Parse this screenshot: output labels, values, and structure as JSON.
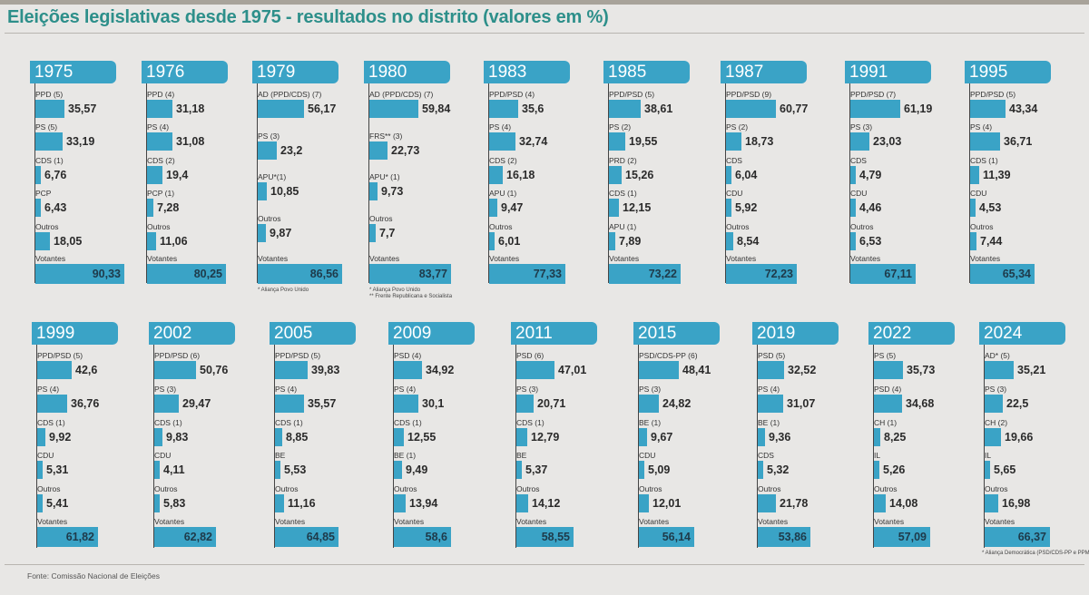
{
  "title": "Eleições legislativas desde 1975 - resultados no distrito (valores em %)",
  "source": "Fonte: Comissão Nacional de Eleições",
  "colors": {
    "bar": "#3aa3c6",
    "title": "#2d8f8a"
  },
  "chart_data": {
    "type": "bar",
    "unit": "%",
    "elections": [
      {
        "year": "1975",
        "parties": [
          {
            "label": "PPD (5)",
            "value": 35.57,
            "text": "35,57"
          },
          {
            "label": "PS (5)",
            "value": 33.19,
            "text": "33,19"
          },
          {
            "label": "CDS (1)",
            "value": 6.76,
            "text": "6,76"
          },
          {
            "label": "PCP",
            "value": 6.43,
            "text": "6,43"
          },
          {
            "label": "Outros",
            "value": 18.05,
            "text": "18,05"
          }
        ],
        "votantes": {
          "label": "Votantes",
          "value": 90.33,
          "text": "90,33"
        },
        "notes": []
      },
      {
        "year": "1976",
        "parties": [
          {
            "label": "PPD (4)",
            "value": 31.18,
            "text": "31,18"
          },
          {
            "label": "PS (4)",
            "value": 31.08,
            "text": "31,08"
          },
          {
            "label": "CDS (2)",
            "value": 19.4,
            "text": "19,4"
          },
          {
            "label": "PCP (1)",
            "value": 7.28,
            "text": "7,28"
          },
          {
            "label": "Outros",
            "value": 11.06,
            "text": "11,06"
          }
        ],
        "votantes": {
          "label": "Votantes",
          "value": 80.25,
          "text": "80,25"
        },
        "notes": []
      },
      {
        "year": "1979",
        "parties": [
          {
            "label": "AD (PPD/CDS) (7)",
            "value": 56.17,
            "text": "56,17"
          },
          {
            "label": "PS (3)",
            "value": 23.2,
            "text": "23,2"
          },
          {
            "label": "APU*(1)",
            "value": 10.85,
            "text": "10,85"
          },
          {
            "label": "Outros",
            "value": 9.87,
            "text": "9,87"
          }
        ],
        "votantes": {
          "label": "Votantes",
          "value": 86.56,
          "text": "86,56"
        },
        "notes": [
          "* Aliança Povo Unido"
        ]
      },
      {
        "year": "1980",
        "parties": [
          {
            "label": "AD (PPD/CDS) (7)",
            "value": 59.84,
            "text": "59,84"
          },
          {
            "label": "FRS** (3)",
            "value": 22.73,
            "text": "22,73"
          },
          {
            "label": "APU* (1)",
            "value": 9.73,
            "text": "9,73"
          },
          {
            "label": "Outros",
            "value": 7.7,
            "text": "7,7"
          }
        ],
        "votantes": {
          "label": "Votantes",
          "value": 83.77,
          "text": "83,77"
        },
        "notes": [
          "* Aliança Povo Unido",
          "** Frente Republicana e Socialista"
        ]
      },
      {
        "year": "1983",
        "parties": [
          {
            "label": "PPD/PSD (4)",
            "value": 35.6,
            "text": "35,6"
          },
          {
            "label": "PS (4)",
            "value": 32.74,
            "text": "32,74"
          },
          {
            "label": "CDS (2)",
            "value": 16.18,
            "text": "16,18"
          },
          {
            "label": "APU (1)",
            "value": 9.47,
            "text": "9,47"
          },
          {
            "label": "Outros",
            "value": 6.01,
            "text": "6,01"
          }
        ],
        "votantes": {
          "label": "Votantes",
          "value": 77.33,
          "text": "77,33"
        },
        "notes": []
      },
      {
        "year": "1985",
        "parties": [
          {
            "label": "PPD/PSD (5)",
            "value": 38.61,
            "text": "38,61"
          },
          {
            "label": "PS (2)",
            "value": 19.55,
            "text": "19,55"
          },
          {
            "label": "PRD (2)",
            "value": 15.26,
            "text": "15,26"
          },
          {
            "label": "CDS (1)",
            "value": 12.15,
            "text": "12,15"
          },
          {
            "label": "APU (1)",
            "value": 7.89,
            "text": "7,89"
          }
        ],
        "votantes": {
          "label": "Votantes",
          "value": 73.22,
          "text": "73,22"
        },
        "notes": []
      },
      {
        "year": "1987",
        "parties": [
          {
            "label": "PPD/PSD (9)",
            "value": 60.77,
            "text": "60,77"
          },
          {
            "label": "PS (2)",
            "value": 18.73,
            "text": "18,73"
          },
          {
            "label": "CDS",
            "value": 6.04,
            "text": "6,04"
          },
          {
            "label": "CDU",
            "value": 5.92,
            "text": "5,92"
          },
          {
            "label": "Outros",
            "value": 8.54,
            "text": "8,54"
          }
        ],
        "votantes": {
          "label": "Votantes",
          "value": 72.23,
          "text": "72,23"
        },
        "notes": []
      },
      {
        "year": "1991",
        "parties": [
          {
            "label": "PPD/PSD (7)",
            "value": 61.19,
            "text": "61,19"
          },
          {
            "label": "PS (3)",
            "value": 23.03,
            "text": "23,03"
          },
          {
            "label": "CDS",
            "value": 4.79,
            "text": "4,79"
          },
          {
            "label": "CDU",
            "value": 4.46,
            "text": "4,46"
          },
          {
            "label": "Outros",
            "value": 6.53,
            "text": "6,53"
          }
        ],
        "votantes": {
          "label": "Votantes",
          "value": 67.11,
          "text": "67,11"
        },
        "notes": []
      },
      {
        "year": "1995",
        "parties": [
          {
            "label": "PPD/PSD (5)",
            "value": 43.34,
            "text": "43,34"
          },
          {
            "label": "PS (4)",
            "value": 36.71,
            "text": "36,71"
          },
          {
            "label": "CDS (1)",
            "value": 11.39,
            "text": "11,39"
          },
          {
            "label": "CDU",
            "value": 4.53,
            "text": "4,53"
          },
          {
            "label": "Outros",
            "value": 7.44,
            "text": "7,44"
          }
        ],
        "votantes": {
          "label": "Votantes",
          "value": 65.34,
          "text": "65,34"
        },
        "notes": []
      },
      {
        "year": "1999",
        "parties": [
          {
            "label": "PPD/PSD (5)",
            "value": 42.6,
            "text": "42,6"
          },
          {
            "label": "PS (4)",
            "value": 36.76,
            "text": "36,76"
          },
          {
            "label": "CDS (1)",
            "value": 9.92,
            "text": "9,92"
          },
          {
            "label": "CDU",
            "value": 5.31,
            "text": "5,31"
          },
          {
            "label": "Outros",
            "value": 5.41,
            "text": "5,41"
          }
        ],
        "votantes": {
          "label": "Votantes",
          "value": 61.82,
          "text": "61,82"
        },
        "notes": []
      },
      {
        "year": "2002",
        "parties": [
          {
            "label": "PPD/PSD (6)",
            "value": 50.76,
            "text": "50,76"
          },
          {
            "label": "PS (3)",
            "value": 29.47,
            "text": "29,47"
          },
          {
            "label": "CDS (1)",
            "value": 9.83,
            "text": "9,83"
          },
          {
            "label": "CDU",
            "value": 4.11,
            "text": "4,11"
          },
          {
            "label": "Outros",
            "value": 5.83,
            "text": "5,83"
          }
        ],
        "votantes": {
          "label": "Votantes",
          "value": 62.82,
          "text": "62,82"
        },
        "notes": []
      },
      {
        "year": "2005",
        "parties": [
          {
            "label": "PPD/PSD (5)",
            "value": 39.83,
            "text": "39,83"
          },
          {
            "label": "PS (4)",
            "value": 35.57,
            "text": "35,57"
          },
          {
            "label": "CDS (1)",
            "value": 8.85,
            "text": "8,85"
          },
          {
            "label": "BE",
            "value": 5.53,
            "text": "5,53"
          },
          {
            "label": "Outros",
            "value": 11.16,
            "text": "11,16"
          }
        ],
        "votantes": {
          "label": "Votantes",
          "value": 64.85,
          "text": "64,85"
        },
        "notes": []
      },
      {
        "year": "2009",
        "parties": [
          {
            "label": "PSD (4)",
            "value": 34.92,
            "text": "34,92"
          },
          {
            "label": "PS (4)",
            "value": 30.1,
            "text": "30,1"
          },
          {
            "label": "CDS (1)",
            "value": 12.55,
            "text": "12,55"
          },
          {
            "label": "BE (1)",
            "value": 9.49,
            "text": "9,49"
          },
          {
            "label": "Outros",
            "value": 13.94,
            "text": "13,94"
          }
        ],
        "votantes": {
          "label": "Votantes",
          "value": 58.6,
          "text": "58,6"
        },
        "notes": []
      },
      {
        "year": "2011",
        "parties": [
          {
            "label": "PSD (6)",
            "value": 47.01,
            "text": "47,01"
          },
          {
            "label": "PS (3)",
            "value": 20.71,
            "text": "20,71"
          },
          {
            "label": "CDS (1)",
            "value": 12.79,
            "text": "12,79"
          },
          {
            "label": "BE",
            "value": 5.37,
            "text": "5,37"
          },
          {
            "label": "Outros",
            "value": 14.12,
            "text": "14,12"
          }
        ],
        "votantes": {
          "label": "Votantes",
          "value": 58.55,
          "text": "58,55"
        },
        "notes": []
      },
      {
        "year": "2015",
        "parties": [
          {
            "label": "PSD/CDS-PP (6)",
            "value": 48.41,
            "text": "48,41"
          },
          {
            "label": "PS (3)",
            "value": 24.82,
            "text": "24,82"
          },
          {
            "label": "BE (1)",
            "value": 9.67,
            "text": "9,67"
          },
          {
            "label": "CDU",
            "value": 5.09,
            "text": "5,09"
          },
          {
            "label": "Outros",
            "value": 12.01,
            "text": "12,01"
          }
        ],
        "votantes": {
          "label": "Votantes",
          "value": 56.14,
          "text": "56,14"
        },
        "notes": []
      },
      {
        "year": "2019",
        "parties": [
          {
            "label": "PSD (5)",
            "value": 32.52,
            "text": "32,52"
          },
          {
            "label": "PS (4)",
            "value": 31.07,
            "text": "31,07"
          },
          {
            "label": "BE (1)",
            "value": 9.36,
            "text": "9,36"
          },
          {
            "label": "CDS",
            "value": 5.32,
            "text": "5,32"
          },
          {
            "label": "Outros",
            "value": 21.78,
            "text": "21,78"
          }
        ],
        "votantes": {
          "label": "Votantes",
          "value": 53.86,
          "text": "53,86"
        },
        "notes": []
      },
      {
        "year": "2022",
        "parties": [
          {
            "label": "PS (5)",
            "value": 35.73,
            "text": "35,73"
          },
          {
            "label": "PSD (4)",
            "value": 34.68,
            "text": "34,68"
          },
          {
            "label": "CH (1)",
            "value": 8.25,
            "text": "8,25"
          },
          {
            "label": "IL",
            "value": 5.26,
            "text": "5,26"
          },
          {
            "label": "Outros",
            "value": 14.08,
            "text": "14,08"
          }
        ],
        "votantes": {
          "label": "Votantes",
          "value": 57.09,
          "text": "57,09"
        },
        "notes": []
      },
      {
        "year": "2024",
        "parties": [
          {
            "label": "AD* (5)",
            "value": 35.21,
            "text": "35,21"
          },
          {
            "label": "PS (3)",
            "value": 22.5,
            "text": "22,5"
          },
          {
            "label": "CH (2)",
            "value": 19.66,
            "text": "19,66"
          },
          {
            "label": "IL",
            "value": 5.65,
            "text": "5,65"
          },
          {
            "label": "Outros",
            "value": 16.98,
            "text": "16,98"
          }
        ],
        "votantes": {
          "label": "Votantes",
          "value": 66.37,
          "text": "66,37"
        },
        "notes": [
          "* Aliança Democrática (PSD/CDS-PP e PPM)"
        ]
      }
    ]
  }
}
